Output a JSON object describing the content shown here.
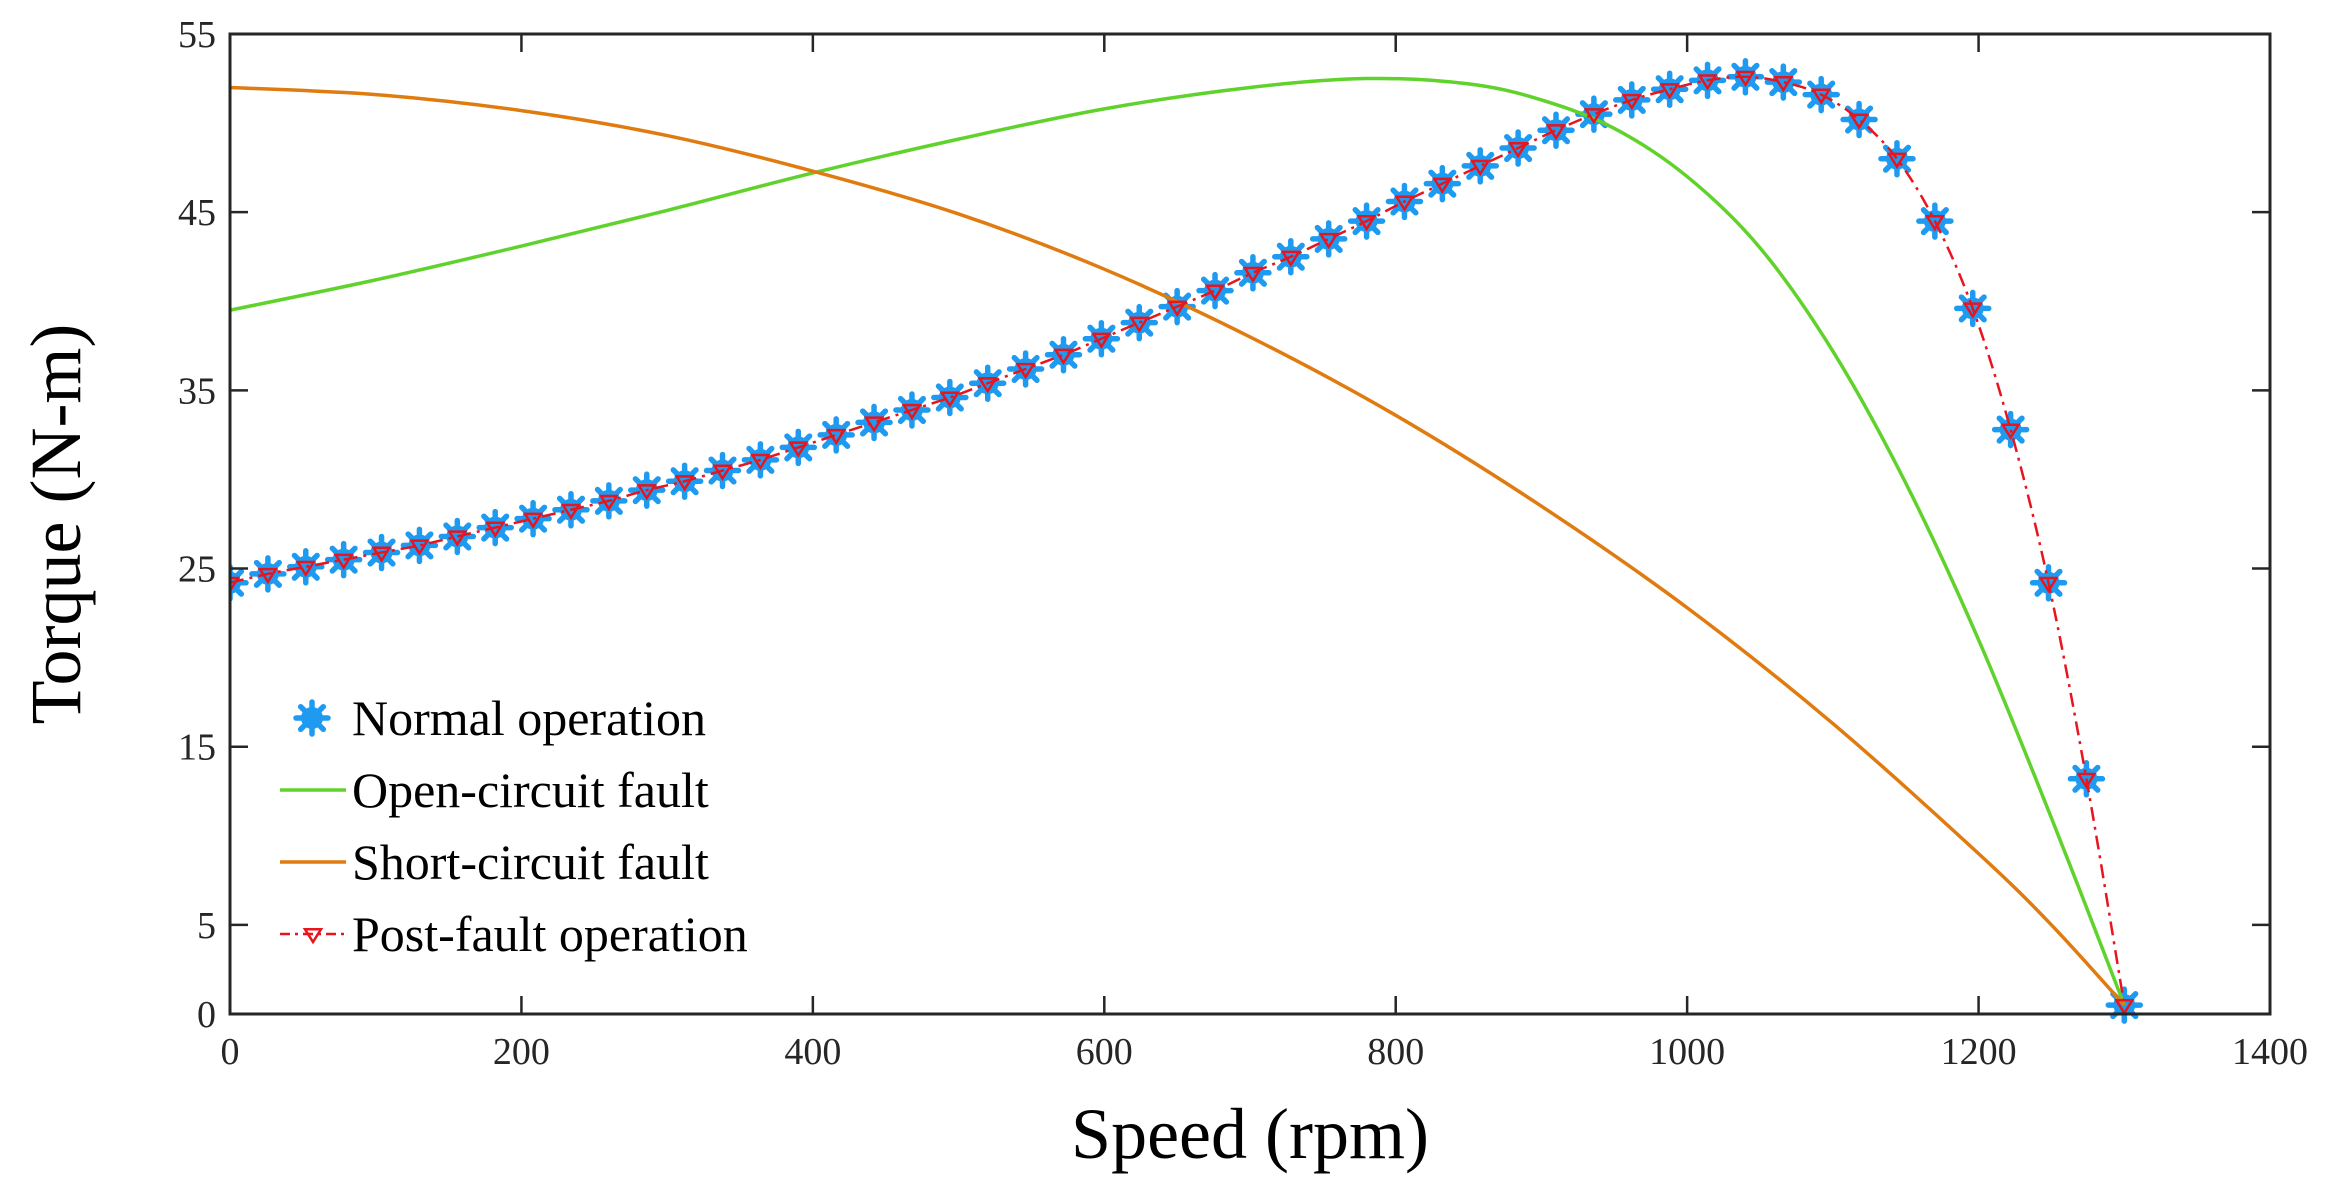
{
  "chart_data": {
    "type": "line",
    "title": "",
    "xlabel": "Speed (rpm)",
    "ylabel": "Torque (N-m)",
    "xlim": [
      0,
      1400
    ],
    "ylim": [
      0,
      55
    ],
    "xticks": [
      0,
      200,
      400,
      600,
      800,
      1000,
      1200,
      1400
    ],
    "yticks": [
      0,
      5,
      15,
      25,
      35,
      45,
      55
    ],
    "grid": false,
    "legend_position": "bottom-left",
    "colors": {
      "normal": "#1e9bf0",
      "open": "#5fd22b",
      "short": "#e07b10",
      "post": "#e8141e"
    },
    "series": [
      {
        "name": "Normal operation",
        "style": "markers",
        "color": "#1e9bf0",
        "x": [
          0,
          26,
          52,
          78,
          104,
          130,
          156,
          182,
          208,
          234,
          260,
          286,
          312,
          338,
          364,
          390,
          416,
          442,
          468,
          494,
          520,
          546,
          572,
          598,
          624,
          650,
          676,
          702,
          728,
          754,
          780,
          806,
          832,
          858,
          884,
          910,
          936,
          962,
          988,
          1014,
          1040,
          1066,
          1092,
          1118,
          1144,
          1170,
          1196,
          1222,
          1248,
          1274,
          1300
        ],
        "y": [
          24.2,
          24.7,
          25.1,
          25.5,
          25.9,
          26.3,
          26.8,
          27.3,
          27.8,
          28.3,
          28.8,
          29.4,
          29.9,
          30.5,
          31.1,
          31.8,
          32.5,
          33.2,
          33.9,
          34.6,
          35.4,
          36.2,
          37.0,
          37.9,
          38.8,
          39.7,
          40.6,
          41.6,
          42.5,
          43.5,
          44.5,
          45.6,
          46.6,
          47.6,
          48.6,
          49.6,
          50.5,
          51.3,
          51.9,
          52.4,
          52.6,
          52.3,
          51.6,
          50.2,
          48.0,
          44.5,
          39.6,
          32.8,
          24.2,
          13.2,
          0.5
        ]
      },
      {
        "name": "Open-circuit fault",
        "style": "line",
        "color": "#5fd22b",
        "x": [
          0,
          100,
          200,
          300,
          400,
          500,
          600,
          700,
          780,
          850,
          900,
          950,
          1000,
          1050,
          1100,
          1150,
          1200,
          1250,
          1300
        ],
        "y": [
          39.5,
          41.2,
          43.1,
          45.1,
          47.2,
          49.1,
          50.8,
          52.0,
          52.5,
          52.2,
          51.3,
          49.7,
          47.0,
          43.0,
          37.2,
          29.8,
          21.0,
          11.0,
          0.5
        ]
      },
      {
        "name": "Short-circuit fault",
        "style": "line",
        "color": "#e07b10",
        "x": [
          0,
          100,
          200,
          300,
          400,
          500,
          600,
          700,
          800,
          900,
          1000,
          1100,
          1200,
          1250,
          1300
        ],
        "y": [
          52.0,
          51.6,
          50.7,
          49.3,
          47.3,
          44.9,
          41.8,
          38.0,
          33.6,
          28.5,
          22.8,
          16.3,
          9.0,
          5.0,
          0.5
        ]
      },
      {
        "name": "Post-fault operation",
        "style": "dashdot-line-with-triangle-markers",
        "color": "#e8141e",
        "x": [
          0,
          26,
          52,
          78,
          104,
          130,
          156,
          182,
          208,
          234,
          260,
          286,
          312,
          338,
          364,
          390,
          416,
          442,
          468,
          494,
          520,
          546,
          572,
          598,
          624,
          650,
          676,
          702,
          728,
          754,
          780,
          806,
          832,
          858,
          884,
          910,
          936,
          962,
          988,
          1014,
          1040,
          1066,
          1092,
          1118,
          1144,
          1170,
          1196,
          1222,
          1248,
          1274,
          1300
        ],
        "y": [
          24.2,
          24.7,
          25.1,
          25.5,
          25.9,
          26.3,
          26.8,
          27.3,
          27.8,
          28.3,
          28.8,
          29.4,
          29.9,
          30.5,
          31.1,
          31.8,
          32.5,
          33.2,
          33.9,
          34.6,
          35.4,
          36.2,
          37.0,
          37.9,
          38.8,
          39.7,
          40.6,
          41.6,
          42.5,
          43.5,
          44.5,
          45.6,
          46.6,
          47.6,
          48.6,
          49.6,
          50.5,
          51.3,
          51.9,
          52.4,
          52.6,
          52.3,
          51.6,
          50.2,
          48.0,
          44.5,
          39.6,
          32.8,
          24.2,
          13.2,
          0.5
        ]
      }
    ]
  }
}
